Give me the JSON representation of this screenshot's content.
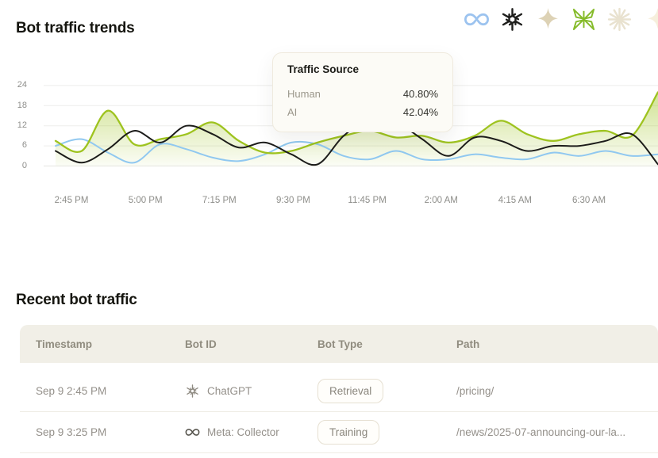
{
  "trends": {
    "title": "Bot traffic trends",
    "icons": [
      {
        "name": "meta",
        "color": "#9cc3ef"
      },
      {
        "name": "openai",
        "color": "#1e1e1c"
      },
      {
        "name": "sparkle",
        "color": "#ddd2b5"
      },
      {
        "name": "green-bot",
        "color": "#85bb2a"
      },
      {
        "name": "asterisk",
        "color": "#e9e2cf"
      },
      {
        "name": "partial-edge",
        "color": "#f6efdc"
      }
    ]
  },
  "chart_data": {
    "type": "line",
    "title": "Bot traffic trends",
    "x_ticks": [
      "2:45 PM",
      "5:00 PM",
      "7:15 PM",
      "9:30 PM",
      "11:45 PM",
      "2:00 AM",
      "4:15 AM",
      "6:30 AM"
    ],
    "y_ticks": [
      24,
      18,
      12,
      6,
      0
    ],
    "ylim": [
      0,
      27
    ],
    "grid": true,
    "legend": "none",
    "series": [
      {
        "label": "",
        "color": "#90c8f0",
        "width": 2,
        "fill": false,
        "values": [
          6,
          8,
          4,
          1,
          6.5,
          5,
          2.5,
          1.5,
          3.5,
          7,
          6.5,
          3,
          2,
          4.5,
          2,
          2,
          3.5,
          2.5,
          2,
          4,
          3,
          4.5,
          3,
          3.5
        ]
      },
      {
        "label": "AI",
        "color": "#9ec31f",
        "width": 2.3,
        "fill": true,
        "values": [
          7.5,
          4.5,
          16.5,
          6.5,
          8,
          9.5,
          13,
          7.5,
          4,
          4.5,
          7,
          9,
          10.5,
          8.5,
          9,
          7,
          9,
          13.5,
          9.5,
          7.5,
          9.5,
          10.5,
          9,
          22
        ]
      },
      {
        "label": "Human",
        "color": "#1c1c1a",
        "width": 2,
        "fill": false,
        "values": [
          4.5,
          1,
          5,
          10.5,
          7,
          12,
          9.5,
          5.5,
          7,
          3.5,
          0.5,
          9,
          14,
          13,
          8,
          3,
          8.5,
          7.5,
          4.5,
          6,
          6,
          7.5,
          9.5,
          0.5
        ]
      }
    ]
  },
  "tooltip": {
    "title": "Traffic Source",
    "rows": [
      {
        "label": "Human",
        "value": "40.80%"
      },
      {
        "label": "AI",
        "value": "42.04%"
      }
    ]
  },
  "recent": {
    "title": "Recent bot traffic",
    "table": {
      "columns": [
        "Timestamp",
        "Bot ID",
        "Bot Type",
        "Path"
      ],
      "rows": [
        {
          "timestamp": "Sep 9 2:45 PM",
          "bot_icon": "openai",
          "bot_id": "ChatGPT",
          "bot_type": "Retrieval",
          "path": "/pricing/"
        },
        {
          "timestamp": "Sep 9 3:25 PM",
          "bot_icon": "meta",
          "bot_id": "Meta: Collector",
          "bot_type": "Training",
          "path": "/news/2025-07-announcing-our-la..."
        }
      ]
    }
  }
}
